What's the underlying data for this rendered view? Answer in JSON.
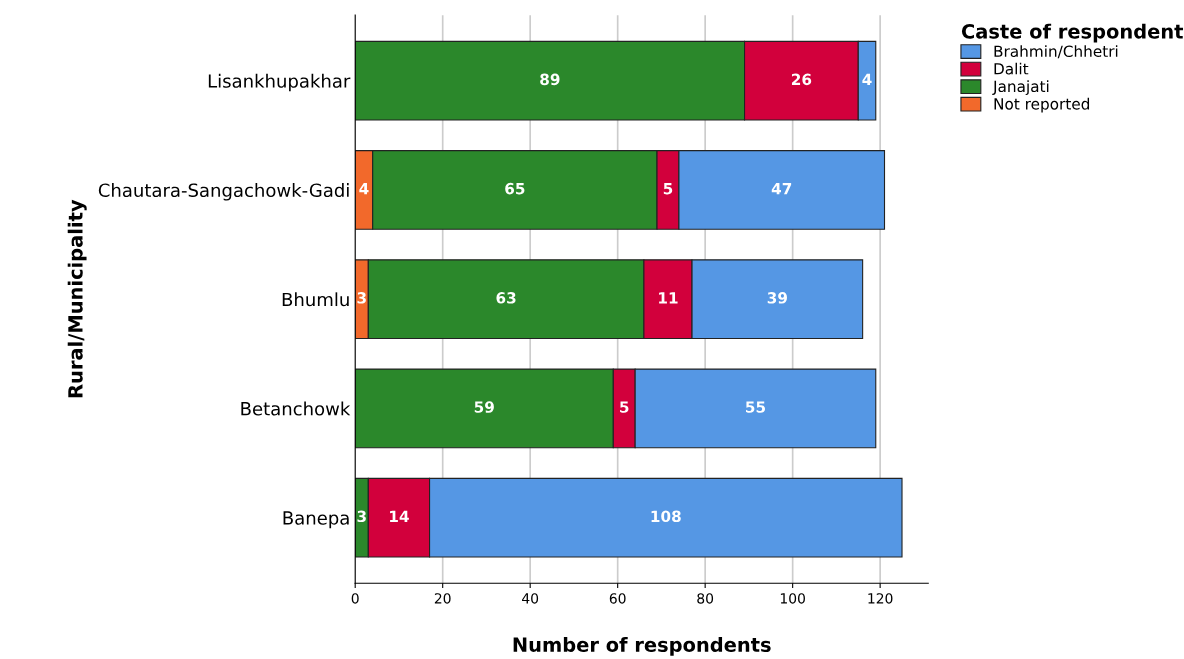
{
  "chart_data": {
    "type": "bar",
    "orientation": "horizontal",
    "stacked": true,
    "xlabel": "Number of respondents",
    "ylabel": "Rural/Municipality",
    "legend_title": "Caste of respondent",
    "legend": "top right",
    "grid": "x",
    "categories": [
      "Lisankhupakhar",
      "Chautara-Sangachowk-Gadi",
      "Bhumlu",
      "Betanchowk",
      "Banepa"
    ],
    "xlim": [
      0,
      131
    ],
    "xticks": [
      0,
      20,
      40,
      60,
      80,
      100,
      120
    ],
    "series": [
      {
        "name": "Not reported",
        "color": "#f2692b",
        "values": [
          0,
          4,
          3,
          0,
          0
        ],
        "value_labels": [
          null,
          "4",
          "3",
          null,
          null
        ]
      },
      {
        "name": "Janajati",
        "color": "#2b882b",
        "values": [
          89,
          65,
          63,
          59,
          3
        ],
        "value_labels": [
          "89",
          "65",
          "63",
          "59",
          "3"
        ]
      },
      {
        "name": "Dalit",
        "color": "#d2003c",
        "values": [
          26,
          5,
          11,
          5,
          14
        ],
        "value_labels": [
          "26",
          "5",
          "11",
          "5",
          "14"
        ]
      },
      {
        "name": "Brahmin/Chhetri",
        "color": "#5597e4",
        "values": [
          4,
          47,
          39,
          55,
          108
        ],
        "value_labels": [
          "4",
          "47",
          "39",
          "55",
          "108"
        ]
      }
    ]
  }
}
